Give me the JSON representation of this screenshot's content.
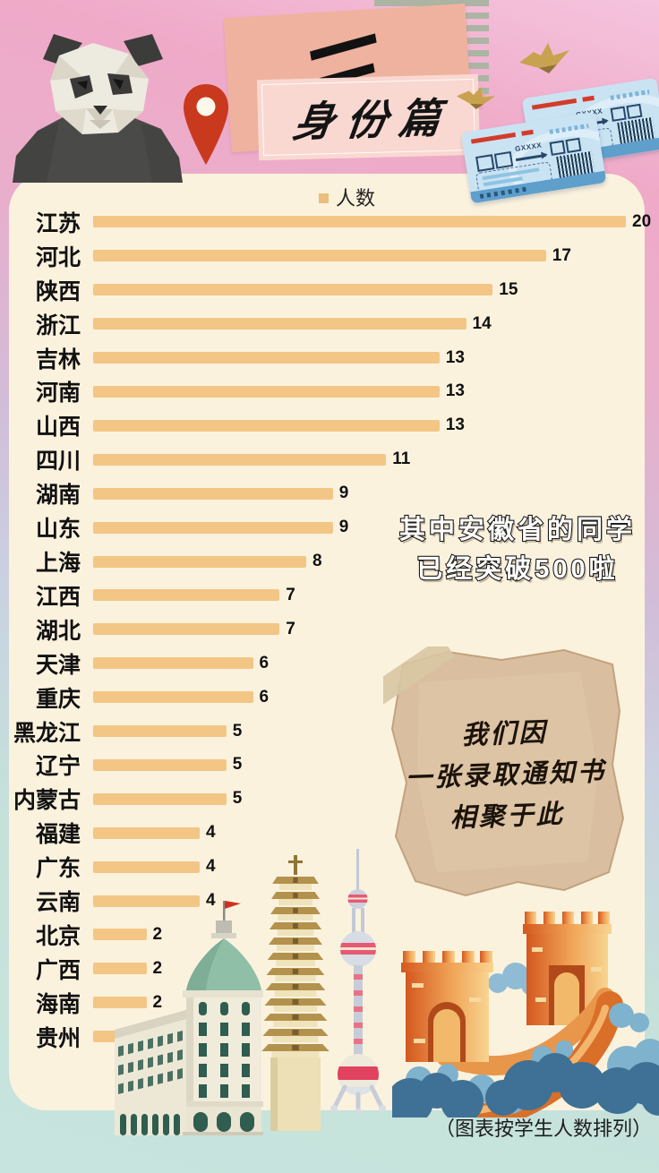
{
  "header": {
    "chapter_number": "三",
    "chapter_title": "身份篇"
  },
  "legend": {
    "label": "人数"
  },
  "chart_data": {
    "type": "bar",
    "orientation": "horizontal",
    "series_name": "人数",
    "categories": [
      "江苏",
      "河北",
      "陕西",
      "浙江",
      "吉林",
      "河南",
      "山西",
      "四川",
      "湖南",
      "山东",
      "上海",
      "江西",
      "湖北",
      "天津",
      "重庆",
      "黑龙江",
      "辽宁",
      "内蒙古",
      "福建",
      "广东",
      "云南",
      "北京",
      "广西",
      "海南",
      "贵州"
    ],
    "values": [
      20,
      17,
      15,
      14,
      13,
      13,
      13,
      11,
      9,
      9,
      8,
      7,
      7,
      6,
      6,
      5,
      5,
      5,
      4,
      4,
      4,
      2,
      2,
      2,
      1
    ],
    "xlim": [
      0,
      20
    ],
    "bar_color": "#F3C685",
    "value_labels_shown": true,
    "grid": false,
    "legend_position": "top-center"
  },
  "annotations": {
    "callout": [
      "其中安徽省的同学",
      "已经突破500啦"
    ],
    "paper_note": [
      "我们因",
      "一张录取通知书",
      "相聚于此"
    ],
    "caption": "（图表按学生人数排列）"
  },
  "decorations": {
    "ticket_code": "GXXXX",
    "icons": [
      "panda-illustration",
      "location-pin-icon",
      "washi-tape",
      "paper-crane-icon",
      "train-ticket",
      "customs-house-building",
      "pagoda-building",
      "oriental-pearl-tower",
      "great-wall"
    ]
  },
  "colors": {
    "bar": "#F3C685",
    "legend_square": "#EBBE7C",
    "panel": "#FBF2DE",
    "accent_red": "#C9391D",
    "banner_main": "#EFB29E",
    "banner_sub": "#F9D8D1",
    "background_top": "#F5C4DE",
    "background_bottom": "#C7E5DE"
  }
}
